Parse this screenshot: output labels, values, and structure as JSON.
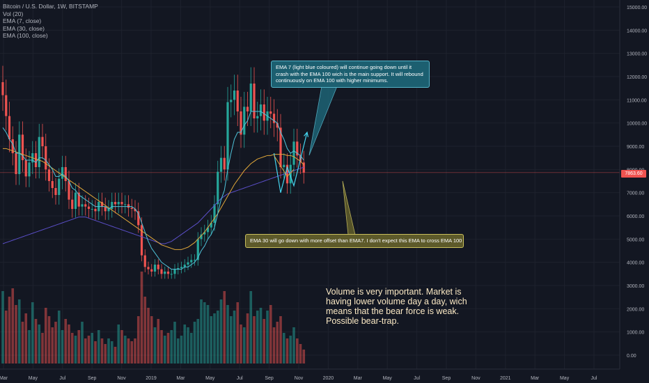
{
  "legend": {
    "title": "Bitcoin / U.S. Dollar, 1W, BITSTAMP",
    "indicators": [
      "Vol (20)",
      "EMA (7, close)",
      "EMA (30, close)",
      "EMA (100, close)"
    ]
  },
  "annotations": {
    "ema7_note": "EMA 7 (light blue coloured) will continue going down until it crash with the EMA 100 wich is the main support. It will rebound continuously on EMA 100 with higher minimums.",
    "ema30_note": "EMA 30 will go down with more offset than EMA7. I don't expect this EMA to cross EMA 100",
    "volume_note": "Volume is very important. Market is having lower volume day a day, wich means that the bear force is weak. Possible bear-trap."
  },
  "current_price_label": "7863.60",
  "colors": {
    "background": "#131722",
    "up": "#26a69a",
    "down": "#ef5350",
    "ema7": "#4fc3d9",
    "ema30": "#e0a73a",
    "ema100": "#5b4fc9",
    "projection": "#45d5ef"
  },
  "chart_data": {
    "type": "candlestick",
    "y_axis_ticks": [
      "15000.00",
      "14000.00",
      "13000.00",
      "12000.00",
      "11000.00",
      "10000.00",
      "9000.00",
      "8000.00",
      "7000.00",
      "6000.00",
      "5000.00",
      "4000.00",
      "3000.00",
      "2000.00",
      "1000.00",
      "0.00"
    ],
    "x_axis_ticks": [
      "Mar",
      "May",
      "Jul",
      "Sep",
      "Nov",
      "2019",
      "Mar",
      "May",
      "Jul",
      "Sep",
      "Nov",
      "2020",
      "Mar",
      "May",
      "Jul",
      "Sep",
      "Nov",
      "2021",
      "Mar",
      "May",
      "Jul"
    ],
    "ylim": [
      -600,
      15300
    ],
    "candle_closes": [
      11200,
      10300,
      9300,
      8700,
      7800,
      9500,
      8400,
      7700,
      8300,
      8700,
      8100,
      9400,
      9000,
      8000,
      7500,
      7200,
      6900,
      7600,
      8100,
      7500,
      6700,
      6300,
      7000,
      6400,
      6500,
      6400,
      6300,
      6300,
      6200,
      6600,
      6400,
      6200,
      6300,
      6600,
      6500,
      6600,
      6500,
      6500,
      6350,
      6300,
      6200,
      5600,
      4300,
      3800,
      3700,
      3600,
      3900,
      3700,
      3500,
      3600,
      3500,
      3500,
      3700,
      3750,
      3800,
      3900,
      4000,
      4100,
      4100,
      5000,
      5200,
      5300,
      5500,
      5700,
      6500,
      7900,
      8500,
      8000,
      10900,
      11000,
      11400,
      10500,
      9500,
      10700,
      10500,
      11700,
      10200,
      10300,
      10800,
      10100,
      10500,
      10400,
      10000,
      9800,
      8100,
      8200,
      7400,
      8200,
      9200,
      8600,
      8300,
      7863
    ],
    "ema7": [
      9800,
      9600,
      9300,
      9100,
      8700,
      8700,
      8600,
      8400,
      8400,
      8400,
      8300,
      8500,
      8500,
      8400,
      8200,
      8000,
      7700,
      7700,
      7800,
      7700,
      7500,
      7200,
      7100,
      6900,
      6800,
      6700,
      6600,
      6500,
      6400,
      6400,
      6400,
      6400,
      6300,
      6400,
      6400,
      6400,
      6400,
      6400,
      6400,
      6400,
      6300,
      6100,
      5700,
      5300,
      4900,
      4600,
      4400,
      4200,
      4000,
      3900,
      3800,
      3700,
      3700,
      3700,
      3700,
      3800,
      3800,
      3900,
      4000,
      4200,
      4500,
      4700,
      5000,
      5200,
      5500,
      6100,
      6700,
      7100,
      8000,
      8700,
      9300,
      9600,
      9600,
      9900,
      10100,
      10500,
      10500,
      10500,
      10500,
      10400,
      10300,
      10200,
      10100,
      10000,
      9600,
      9300,
      8900,
      8700,
      8800,
      8700,
      8600,
      8400
    ],
    "ema30": [
      8900,
      8900,
      8850,
      8800,
      8750,
      8700,
      8650,
      8600,
      8550,
      8500,
      8450,
      8400,
      8350,
      8250,
      8150,
      8050,
      7950,
      7850,
      7750,
      7650,
      7550,
      7450,
      7350,
      7250,
      7150,
      7050,
      6950,
      6850,
      6750,
      6650,
      6550,
      6450,
      6350,
      6250,
      6150,
      6050,
      5950,
      5850,
      5750,
      5650,
      5550,
      5450,
      5350,
      5250,
      5150,
      5050,
      4950,
      4850,
      4750,
      4700,
      4650,
      4600,
      4550,
      4550,
      4550,
      4600,
      4650,
      4750,
      4850,
      5000,
      5150,
      5300,
      5500,
      5700,
      5900,
      6100,
      6350,
      6600,
      6850,
      7100,
      7350,
      7550,
      7750,
      7950,
      8100,
      8250,
      8350,
      8450,
      8500,
      8550,
      8600,
      8600,
      8650,
      8650,
      8650,
      8650,
      8600,
      8600,
      8550,
      8450,
      8350,
      8200
    ],
    "ema100": [
      4800,
      4850,
      4900,
      4950,
      5000,
      5050,
      5100,
      5150,
      5200,
      5250,
      5300,
      5350,
      5400,
      5450,
      5500,
      5550,
      5600,
      5650,
      5700,
      5750,
      5800,
      5850,
      5900,
      5950,
      5950,
      5950,
      5900,
      5850,
      5800,
      5750,
      5700,
      5650,
      5600,
      5550,
      5500,
      5450,
      5400,
      5350,
      5300,
      5250,
      5200,
      5150,
      5100,
      5050,
      5000,
      4950,
      4900,
      4850,
      4800,
      4800,
      4850,
      4900,
      5000,
      5100,
      5200,
      5300,
      5400,
      5500,
      5600,
      5700,
      5850,
      6000,
      6150,
      6300,
      6450,
      6600,
      6750,
      6850,
      6950,
      7000,
      7050,
      7100,
      7150,
      7200,
      7250,
      7300,
      7350,
      7400,
      7450,
      7500,
      7550,
      7600,
      7650,
      7700,
      7750,
      7800,
      7850,
      7900,
      7950,
      8000,
      8050,
      8100
    ],
    "volume": [
      2600,
      1900,
      2400,
      2700,
      2100,
      2300,
      1500,
      1800,
      1200,
      2200,
      1600,
      1400,
      1100,
      2000,
      1700,
      1300,
      1500,
      1900,
      1200,
      1600,
      1400,
      1100,
      1000,
      1200,
      1500,
      900,
      1000,
      1100,
      800,
      1200,
      900,
      700,
      900,
      800,
      600,
      1400,
      1200,
      1000,
      900,
      800,
      900,
      1700,
      3300,
      2400,
      2000,
      1700,
      1300,
      1600,
      1200,
      1000,
      1100,
      1200,
      1500,
      900,
      1000,
      1400,
      1300,
      1100,
      1500,
      1600,
      2300,
      2200,
      2100,
      1700,
      1800,
      1900,
      2300,
      2600,
      2100,
      1700,
      1900,
      2200,
      1400,
      1300,
      1800,
      2600,
      1700,
      1900,
      2000,
      1600,
      1900,
      2100,
      1300,
      1500,
      1700,
      1100,
      900,
      1000,
      1300,
      900,
      700,
      500
    ],
    "projection_path": [
      [
        82,
        8700
      ],
      [
        84,
        7000
      ],
      [
        86,
        8100
      ],
      [
        88,
        7300
      ],
      [
        92,
        9600
      ]
    ],
    "ema30_projection": [
      [
        82,
        8600
      ],
      [
        86,
        7700
      ],
      [
        88,
        8000
      ]
    ]
  }
}
